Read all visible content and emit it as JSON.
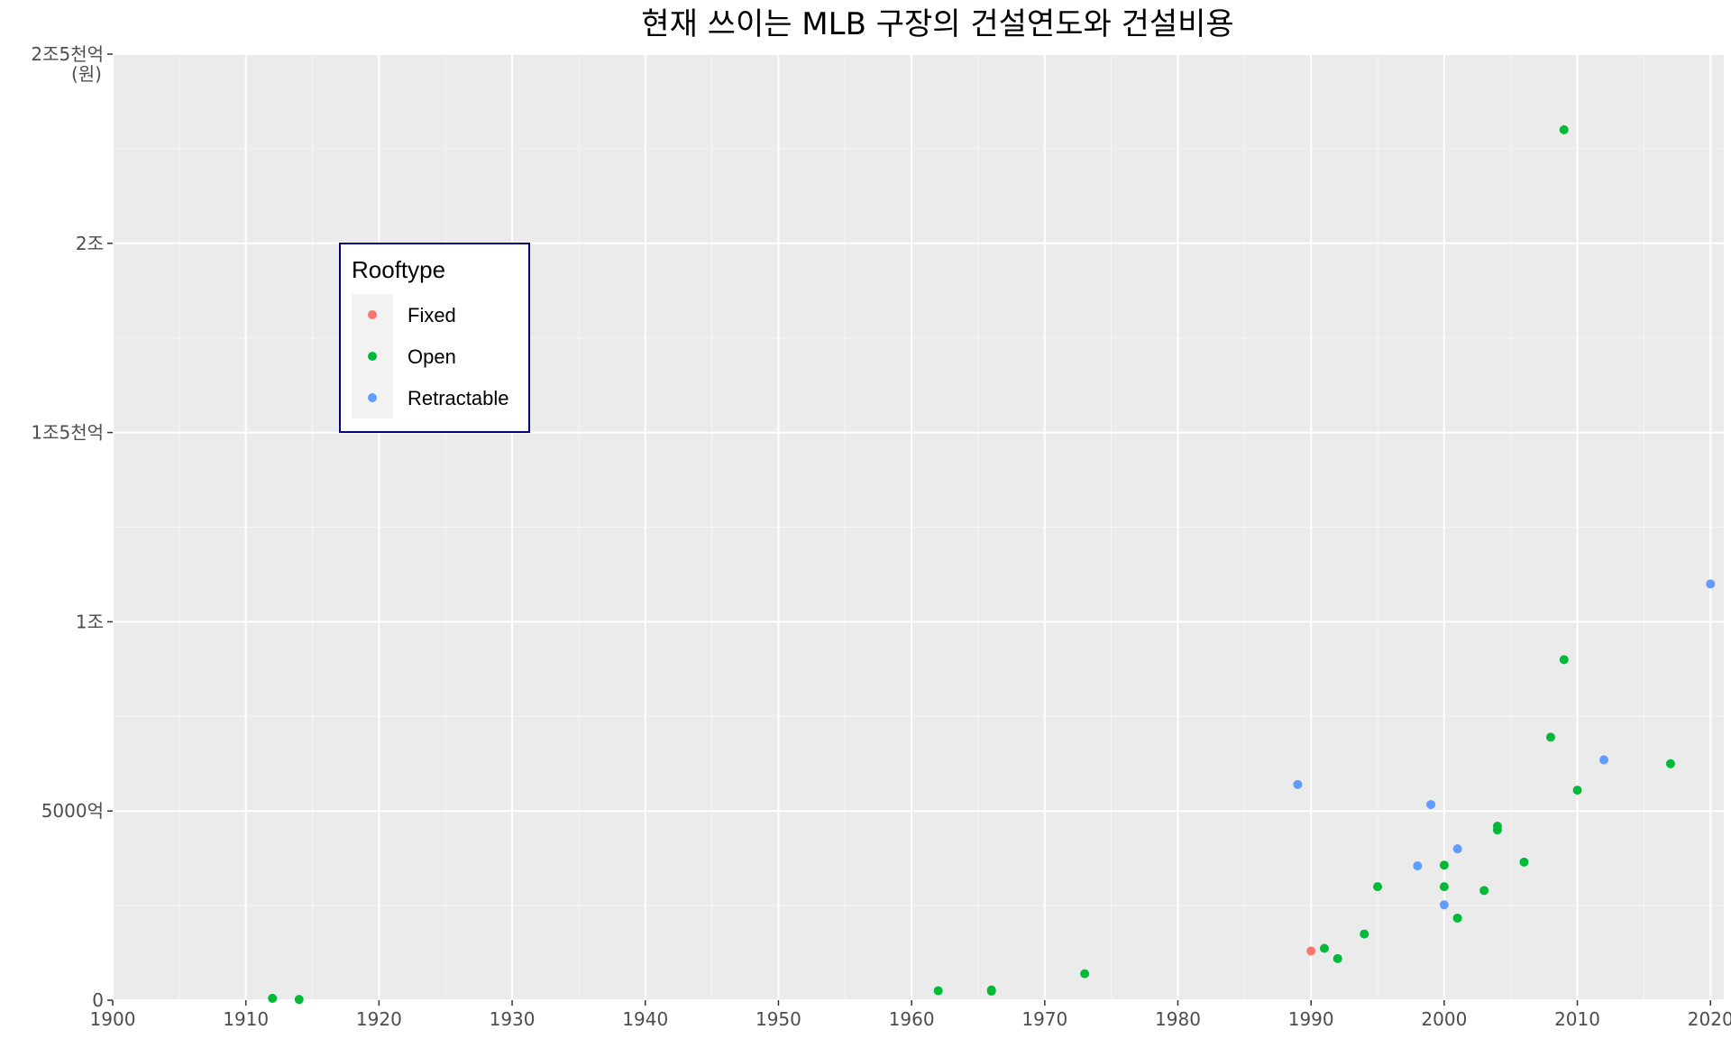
{
  "chart_data": {
    "type": "scatter",
    "title": "현재 쓰이는 MLB 구장의 건설연도와 건설비용",
    "xlabel": "",
    "ylabel": "",
    "xlim": [
      1900,
      2021
    ],
    "ylim": [
      0,
      2500000000000
    ],
    "x_ticks": [
      1900,
      1910,
      1920,
      1930,
      1940,
      1950,
      1960,
      1970,
      1980,
      1990,
      2000,
      2010,
      2020
    ],
    "x_tick_labels": [
      "1900",
      "1910",
      "1920",
      "1930",
      "1940",
      "1950",
      "1960",
      "1970",
      "1980",
      "1990",
      "2000",
      "2010",
      "2020"
    ],
    "y_ticks": [
      0,
      500000000000,
      1000000000000,
      1500000000000,
      2000000000000,
      2500000000000
    ],
    "y_tick_labels": [
      "0",
      "5000억",
      "1조",
      "1조5천억",
      "2조",
      "2조5천억"
    ],
    "y_unit_label": "(원)",
    "grid": true,
    "background": "#ebebeb",
    "legend": {
      "title": "Rooftype",
      "placement": "inside-upper-left",
      "border_color": "#000080",
      "entries": [
        {
          "name": "Fixed",
          "color": "#F8766D"
        },
        {
          "name": "Open",
          "color": "#00BA38"
        },
        {
          "name": "Retractable",
          "color": "#619CFF"
        }
      ]
    },
    "series": [
      {
        "name": "Fixed",
        "color": "#F8766D",
        "points": [
          {
            "x": 1990,
            "y": 130000000000
          }
        ]
      },
      {
        "name": "Open",
        "color": "#00BA38",
        "points": [
          {
            "x": 1912,
            "y": 5000000000
          },
          {
            "x": 1914,
            "y": 2000000000
          },
          {
            "x": 1962,
            "y": 25000000000
          },
          {
            "x": 1966,
            "y": 27000000000
          },
          {
            "x": 1966,
            "y": 24000000000
          },
          {
            "x": 1973,
            "y": 70000000000
          },
          {
            "x": 1991,
            "y": 137000000000
          },
          {
            "x": 1992,
            "y": 110000000000
          },
          {
            "x": 1994,
            "y": 175000000000
          },
          {
            "x": 1995,
            "y": 300000000000
          },
          {
            "x": 2000,
            "y": 357000000000
          },
          {
            "x": 2000,
            "y": 300000000000
          },
          {
            "x": 2001,
            "y": 217000000000
          },
          {
            "x": 2003,
            "y": 290000000000
          },
          {
            "x": 2004,
            "y": 460000000000
          },
          {
            "x": 2004,
            "y": 450000000000
          },
          {
            "x": 2006,
            "y": 365000000000
          },
          {
            "x": 2008,
            "y": 695000000000
          },
          {
            "x": 2009,
            "y": 900000000000
          },
          {
            "x": 2009,
            "y": 2300000000000
          },
          {
            "x": 2010,
            "y": 555000000000
          },
          {
            "x": 2017,
            "y": 625000000000
          }
        ]
      },
      {
        "name": "Retractable",
        "color": "#619CFF",
        "points": [
          {
            "x": 1989,
            "y": 570000000000
          },
          {
            "x": 1998,
            "y": 355000000000
          },
          {
            "x": 1999,
            "y": 517000000000
          },
          {
            "x": 2000,
            "y": 252000000000
          },
          {
            "x": 2001,
            "y": 400000000000
          },
          {
            "x": 2012,
            "y": 635000000000
          },
          {
            "x": 2020,
            "y": 1100000000000
          }
        ]
      }
    ]
  }
}
